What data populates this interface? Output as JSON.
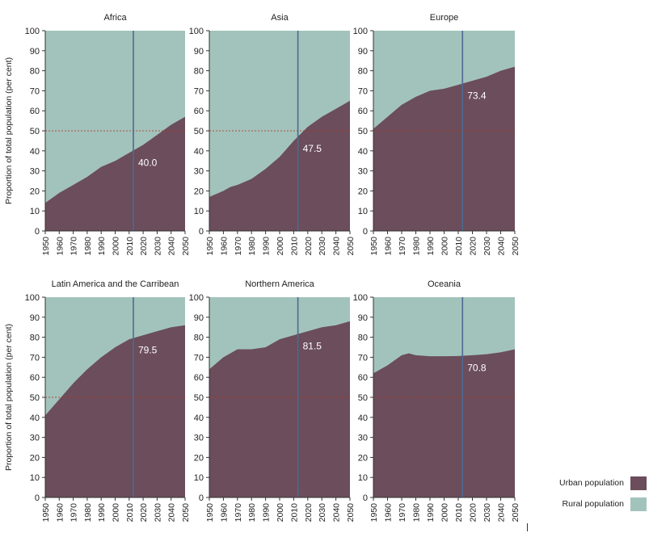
{
  "colors": {
    "urban": "#6b4d5b",
    "rural": "#a2c3bb",
    "reference_line": "#4d6a92",
    "fifty_line": "#b03a2e"
  },
  "legend": {
    "urban_label": "Urban population",
    "rural_label": "Rural population"
  },
  "chart_data": [
    {
      "type": "area",
      "title": "Africa",
      "ylabel": "Proportion of total population (per cent)",
      "x": [
        1950,
        1960,
        1970,
        1980,
        1990,
        2000,
        2010,
        2020,
        2030,
        2040,
        2050
      ],
      "series": [
        {
          "name": "Urban population",
          "values": [
            14,
            19,
            23,
            27,
            32,
            35,
            39,
            43,
            48,
            53,
            57
          ]
        },
        {
          "name": "Rural population",
          "values": [
            86,
            81,
            77,
            73,
            68,
            65,
            61,
            57,
            52,
            47,
            43
          ]
        }
      ],
      "annotation_x": 2013,
      "annotation_label": "40.0",
      "xlim": [
        1950,
        2050
      ],
      "ylim": [
        0,
        100
      ],
      "yticks": [
        0,
        10,
        20,
        30,
        40,
        50,
        60,
        70,
        80,
        90,
        100
      ],
      "xticks": [
        1950,
        1960,
        1970,
        1980,
        1990,
        2000,
        2010,
        2020,
        2030,
        2040,
        2050
      ]
    },
    {
      "type": "area",
      "title": "Asia",
      "ylabel": "",
      "x": [
        1950,
        1960,
        1965,
        1970,
        1980,
        1990,
        2000,
        2010,
        2020,
        2030,
        2040,
        2050
      ],
      "series": [
        {
          "name": "Urban population",
          "values": [
            17,
            20,
            22,
            23,
            26,
            31,
            37,
            45,
            52,
            57,
            61,
            65
          ]
        },
        {
          "name": "Rural population",
          "values": [
            83,
            80,
            78,
            77,
            74,
            69,
            63,
            55,
            48,
            43,
            39,
            35
          ]
        }
      ],
      "annotation_x": 2013,
      "annotation_label": "47.5",
      "xlim": [
        1950,
        2050
      ],
      "ylim": [
        0,
        100
      ],
      "yticks": [
        0,
        10,
        20,
        30,
        40,
        50,
        60,
        70,
        80,
        90,
        100
      ],
      "xticks": [
        1950,
        1960,
        1970,
        1980,
        1990,
        2000,
        2010,
        2020,
        2030,
        2040,
        2050
      ]
    },
    {
      "type": "area",
      "title": "Europe",
      "ylabel": "",
      "x": [
        1950,
        1960,
        1970,
        1980,
        1990,
        2000,
        2010,
        2020,
        2030,
        2040,
        2050
      ],
      "series": [
        {
          "name": "Urban population",
          "values": [
            51,
            57,
            63,
            67,
            70,
            71,
            73,
            75,
            77,
            80,
            82
          ]
        },
        {
          "name": "Rural population",
          "values": [
            49,
            43,
            37,
            33,
            30,
            29,
            27,
            25,
            23,
            20,
            18
          ]
        }
      ],
      "annotation_x": 2013,
      "annotation_label": "73.4",
      "xlim": [
        1950,
        2050
      ],
      "ylim": [
        0,
        100
      ],
      "yticks": [
        0,
        10,
        20,
        30,
        40,
        50,
        60,
        70,
        80,
        90,
        100
      ],
      "xticks": [
        1950,
        1960,
        1970,
        1980,
        1990,
        2000,
        2010,
        2020,
        2030,
        2040,
        2050
      ]
    },
    {
      "type": "area",
      "title": "Latin America and the Carribean",
      "ylabel": "Proportion of total population (per cent)",
      "x": [
        1950,
        1960,
        1970,
        1980,
        1990,
        2000,
        2010,
        2020,
        2030,
        2040,
        2050
      ],
      "series": [
        {
          "name": "Urban population",
          "values": [
            41,
            49,
            57,
            64,
            70,
            75,
            79,
            81,
            83,
            85,
            86
          ]
        },
        {
          "name": "Rural population",
          "values": [
            59,
            51,
            43,
            36,
            30,
            25,
            21,
            19,
            17,
            15,
            14
          ]
        }
      ],
      "annotation_x": 2013,
      "annotation_label": "79.5",
      "xlim": [
        1950,
        2050
      ],
      "ylim": [
        0,
        100
      ],
      "yticks": [
        0,
        10,
        20,
        30,
        40,
        50,
        60,
        70,
        80,
        90,
        100
      ],
      "xticks": [
        1950,
        1960,
        1970,
        1980,
        1990,
        2000,
        2010,
        2020,
        2030,
        2040,
        2050
      ]
    },
    {
      "type": "area",
      "title": "Northern America",
      "ylabel": "",
      "x": [
        1950,
        1960,
        1970,
        1980,
        1990,
        2000,
        2010,
        2020,
        2030,
        2040,
        2050
      ],
      "series": [
        {
          "name": "Urban population",
          "values": [
            64,
            70,
            74,
            74,
            75,
            79,
            81,
            83,
            85,
            86,
            88
          ]
        },
        {
          "name": "Rural population",
          "values": [
            36,
            30,
            26,
            26,
            25,
            21,
            19,
            17,
            15,
            14,
            12
          ]
        }
      ],
      "annotation_x": 2013,
      "annotation_label": "81.5",
      "xlim": [
        1950,
        2050
      ],
      "ylim": [
        0,
        100
      ],
      "yticks": [
        0,
        10,
        20,
        30,
        40,
        50,
        60,
        70,
        80,
        90,
        100
      ],
      "xticks": [
        1950,
        1960,
        1970,
        1980,
        1990,
        2000,
        2010,
        2020,
        2030,
        2040,
        2050
      ]
    },
    {
      "type": "area",
      "title": "Oceania",
      "ylabel": "",
      "x": [
        1950,
        1960,
        1970,
        1975,
        1980,
        1990,
        2000,
        2010,
        2020,
        2030,
        2040,
        2050
      ],
      "series": [
        {
          "name": "Urban population",
          "values": [
            62,
            66,
            71,
            72,
            71,
            70.5,
            70.5,
            70.6,
            71,
            71.5,
            72.5,
            74
          ]
        },
        {
          "name": "Rural population",
          "values": [
            38,
            34,
            29,
            28,
            29,
            29.5,
            29.5,
            29.4,
            29,
            28.5,
            27.5,
            26
          ]
        }
      ],
      "annotation_x": 2013,
      "annotation_label": "70.8",
      "xlim": [
        1950,
        2050
      ],
      "ylim": [
        0,
        100
      ],
      "yticks": [
        0,
        10,
        20,
        30,
        40,
        50,
        60,
        70,
        80,
        90,
        100
      ],
      "xticks": [
        1950,
        1960,
        1970,
        1980,
        1990,
        2000,
        2010,
        2020,
        2030,
        2040,
        2050
      ]
    }
  ]
}
